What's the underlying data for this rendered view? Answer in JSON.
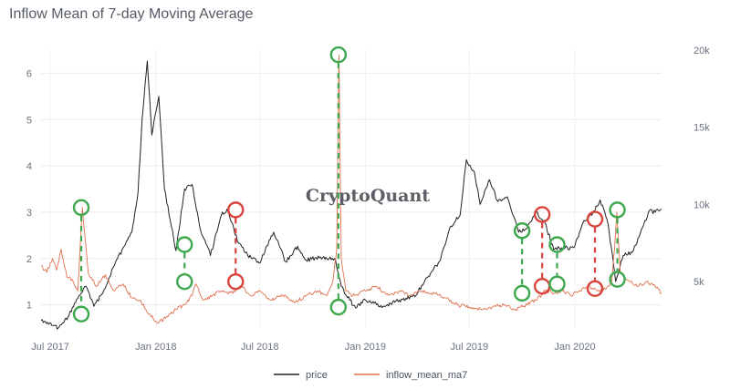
{
  "chart_data": {
    "type": "line",
    "title": "Inflow Mean of 7-day Moving Average",
    "watermark": "CryptoQuant",
    "x_tick_labels": [
      "Jul 2017",
      "Jan 2018",
      "Jul 2018",
      "Jan 2019",
      "Jul 2019",
      "Jan 2020"
    ],
    "x_range": [
      "2017-06-15",
      "2020-05-31"
    ],
    "y_left": {
      "range": [
        0.5,
        6.5
      ],
      "ticks": [
        1,
        2,
        3,
        4,
        5,
        6
      ],
      "tick_labels": [
        "1",
        "2",
        "3",
        "4",
        "5",
        "6"
      ]
    },
    "y_right": {
      "range": [
        2000,
        20000
      ],
      "ticks": [
        5000,
        10000,
        15000,
        20000
      ],
      "tick_labels": [
        "5k",
        "10k",
        "15k",
        "20k"
      ]
    },
    "grid": true,
    "legend_position": "bottom-center",
    "series": [
      {
        "name": "price",
        "axis": "right",
        "color": "#222222",
        "points": [
          [
            "2017-06-15",
            2500
          ],
          [
            "2017-07-15",
            2000
          ],
          [
            "2017-08-01",
            2700
          ],
          [
            "2017-08-20",
            4100
          ],
          [
            "2017-09-01",
            4700
          ],
          [
            "2017-09-15",
            3400
          ],
          [
            "2017-10-01",
            4300
          ],
          [
            "2017-10-20",
            6000
          ],
          [
            "2017-11-05",
            7200
          ],
          [
            "2017-11-20",
            8200
          ],
          [
            "2017-12-01",
            10800
          ],
          [
            "2017-12-08",
            15500
          ],
          [
            "2017-12-17",
            19300
          ],
          [
            "2017-12-25",
            14500
          ],
          [
            "2018-01-06",
            17000
          ],
          [
            "2018-01-16",
            11000
          ],
          [
            "2018-02-05",
            7000
          ],
          [
            "2018-02-20",
            11000
          ],
          [
            "2018-03-05",
            11300
          ],
          [
            "2018-03-20",
            8300
          ],
          [
            "2018-04-06",
            6700
          ],
          [
            "2018-04-25",
            9300
          ],
          [
            "2018-05-05",
            9700
          ],
          [
            "2018-05-25",
            7500
          ],
          [
            "2018-06-10",
            6700
          ],
          [
            "2018-06-30",
            6200
          ],
          [
            "2018-07-25",
            8200
          ],
          [
            "2018-08-15",
            6300
          ],
          [
            "2018-09-05",
            7300
          ],
          [
            "2018-09-20",
            6400
          ],
          [
            "2018-10-15",
            6600
          ],
          [
            "2018-11-10",
            6400
          ],
          [
            "2018-11-20",
            4700
          ],
          [
            "2018-12-05",
            3800
          ],
          [
            "2018-12-15",
            3300
          ],
          [
            "2019-01-01",
            3800
          ],
          [
            "2019-02-01",
            3400
          ],
          [
            "2019-03-01",
            3800
          ],
          [
            "2019-03-30",
            4100
          ],
          [
            "2019-04-15",
            5100
          ],
          [
            "2019-05-10",
            6300
          ],
          [
            "2019-05-30",
            8600
          ],
          [
            "2019-06-15",
            9300
          ],
          [
            "2019-06-26",
            12900
          ],
          [
            "2019-07-10",
            12100
          ],
          [
            "2019-07-20",
            10000
          ],
          [
            "2019-08-05",
            11600
          ],
          [
            "2019-08-20",
            10200
          ],
          [
            "2019-09-05",
            10500
          ],
          [
            "2019-09-25",
            8200
          ],
          [
            "2019-10-10",
            8500
          ],
          [
            "2019-10-26",
            9500
          ],
          [
            "2019-11-10",
            8800
          ],
          [
            "2019-11-25",
            7100
          ],
          [
            "2019-12-15",
            7200
          ],
          [
            "2019-12-30",
            7200
          ],
          [
            "2020-01-15",
            8800
          ],
          [
            "2020-02-01",
            9400
          ],
          [
            "2020-02-14",
            10300
          ],
          [
            "2020-02-28",
            8700
          ],
          [
            "2020-03-12",
            5000
          ],
          [
            "2020-03-25",
            6700
          ],
          [
            "2020-04-10",
            6900
          ],
          [
            "2020-04-30",
            8700
          ],
          [
            "2020-05-10",
            9600
          ],
          [
            "2020-05-20",
            9500
          ],
          [
            "2020-05-31",
            9700
          ]
        ]
      },
      {
        "name": "inflow_mean_ma7",
        "axis": "left",
        "color": "#e0704e",
        "points": [
          [
            "2017-06-15",
            1.85
          ],
          [
            "2017-06-25",
            1.7
          ],
          [
            "2017-07-05",
            2.0
          ],
          [
            "2017-07-12",
            1.75
          ],
          [
            "2017-07-20",
            2.2
          ],
          [
            "2017-07-30",
            1.6
          ],
          [
            "2017-08-08",
            1.55
          ],
          [
            "2017-08-18",
            1.3
          ],
          [
            "2017-08-26",
            3.1
          ],
          [
            "2017-09-05",
            1.7
          ],
          [
            "2017-09-20",
            1.4
          ],
          [
            "2017-10-05",
            1.65
          ],
          [
            "2017-10-20",
            1.3
          ],
          [
            "2017-11-05",
            1.45
          ],
          [
            "2017-11-20",
            1.15
          ],
          [
            "2017-12-05",
            1.1
          ],
          [
            "2017-12-20",
            0.8
          ],
          [
            "2018-01-05",
            0.6
          ],
          [
            "2018-01-20",
            0.75
          ],
          [
            "2018-02-05",
            0.9
          ],
          [
            "2018-02-20",
            1.0
          ],
          [
            "2018-03-05",
            1.2
          ],
          [
            "2018-03-12",
            1.45
          ],
          [
            "2018-03-25",
            1.1
          ],
          [
            "2018-04-10",
            1.2
          ],
          [
            "2018-04-25",
            1.3
          ],
          [
            "2018-05-15",
            1.25
          ],
          [
            "2018-05-30",
            1.4
          ],
          [
            "2018-06-15",
            1.2
          ],
          [
            "2018-07-01",
            1.3
          ],
          [
            "2018-07-20",
            1.1
          ],
          [
            "2018-08-10",
            1.2
          ],
          [
            "2018-09-01",
            1.05
          ],
          [
            "2018-09-20",
            1.2
          ],
          [
            "2018-10-10",
            1.3
          ],
          [
            "2018-10-25",
            1.2
          ],
          [
            "2018-11-05",
            1.5
          ],
          [
            "2018-11-12",
            2.2
          ],
          [
            "2018-11-16",
            6.4
          ],
          [
            "2018-11-20",
            2.0
          ],
          [
            "2018-11-28",
            1.3
          ],
          [
            "2018-12-10",
            1.2
          ],
          [
            "2019-01-01",
            1.3
          ],
          [
            "2019-01-20",
            1.4
          ],
          [
            "2019-02-10",
            1.2
          ],
          [
            "2019-03-01",
            1.3
          ],
          [
            "2019-03-20",
            1.2
          ],
          [
            "2019-04-10",
            1.3
          ],
          [
            "2019-05-01",
            1.25
          ],
          [
            "2019-05-20",
            1.15
          ],
          [
            "2019-06-10",
            1.0
          ],
          [
            "2019-07-01",
            0.95
          ],
          [
            "2019-07-20",
            0.9
          ],
          [
            "2019-08-10",
            0.95
          ],
          [
            "2019-09-01",
            1.0
          ],
          [
            "2019-09-20",
            0.9
          ],
          [
            "2019-10-10",
            1.0
          ],
          [
            "2019-10-25",
            1.1
          ],
          [
            "2019-11-10",
            1.3
          ],
          [
            "2019-11-25",
            1.25
          ],
          [
            "2019-12-10",
            1.3
          ],
          [
            "2019-12-25",
            1.2
          ],
          [
            "2020-01-10",
            1.3
          ],
          [
            "2020-01-25",
            1.4
          ],
          [
            "2020-02-10",
            1.3
          ],
          [
            "2020-02-25",
            1.35
          ],
          [
            "2020-03-05",
            1.5
          ],
          [
            "2020-03-10",
            2.2
          ],
          [
            "2020-03-14",
            3.0
          ],
          [
            "2020-03-20",
            1.7
          ],
          [
            "2020-04-05",
            1.5
          ],
          [
            "2020-04-20",
            1.4
          ],
          [
            "2020-05-05",
            1.5
          ],
          [
            "2020-05-20",
            1.4
          ],
          [
            "2020-05-31",
            1.25
          ]
        ]
      }
    ],
    "annotations": [
      {
        "date": "2017-08-24",
        "top": 3.1,
        "bottom": 0.8,
        "color": "#3ea84e"
      },
      {
        "date": "2018-02-20",
        "top": 2.3,
        "bottom": 1.5,
        "color": "#3ea84e"
      },
      {
        "date": "2018-05-20",
        "top": 3.05,
        "bottom": 1.5,
        "color": "#d9443c"
      },
      {
        "date": "2018-11-15",
        "top": 6.4,
        "bottom": 0.95,
        "color": "#3ea84e"
      },
      {
        "date": "2019-10-01",
        "top": 2.6,
        "bottom": 1.25,
        "color": "#3ea84e"
      },
      {
        "date": "2019-11-05",
        "top": 2.95,
        "bottom": 1.4,
        "color": "#d9443c"
      },
      {
        "date": "2019-12-01",
        "top": 2.3,
        "bottom": 1.45,
        "color": "#3ea84e"
      },
      {
        "date": "2020-02-05",
        "top": 2.85,
        "bottom": 1.35,
        "color": "#d9443c"
      },
      {
        "date": "2020-03-15",
        "top": 3.05,
        "bottom": 1.55,
        "color": "#3ea84e"
      }
    ]
  }
}
